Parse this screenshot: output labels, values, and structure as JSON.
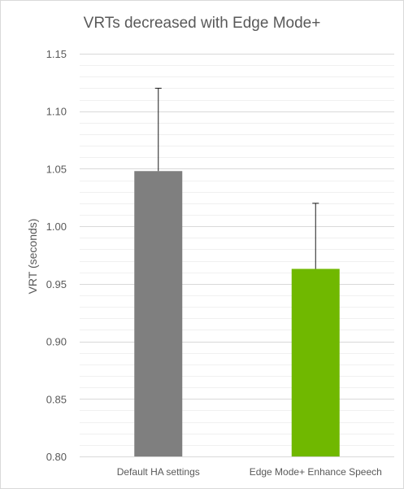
{
  "chart_data": {
    "type": "bar",
    "title": "VRTs decreased with Edge Mode+",
    "xlabel": "",
    "ylabel": "VRT (seconds)",
    "categories": [
      "Default HA settings",
      "Edge Mode+ Enhance Speech"
    ],
    "values": [
      1.048,
      0.963
    ],
    "error_upper": [
      0.072,
      0.057
    ],
    "colors": [
      "#7f7f7f",
      "#70b800"
    ],
    "ylim": [
      0.8,
      1.15
    ],
    "yticks": [
      "0.80",
      "0.85",
      "0.90",
      "0.95",
      "1.00",
      "1.05",
      "1.10",
      "1.15"
    ],
    "grid": true,
    "legend": "none"
  }
}
